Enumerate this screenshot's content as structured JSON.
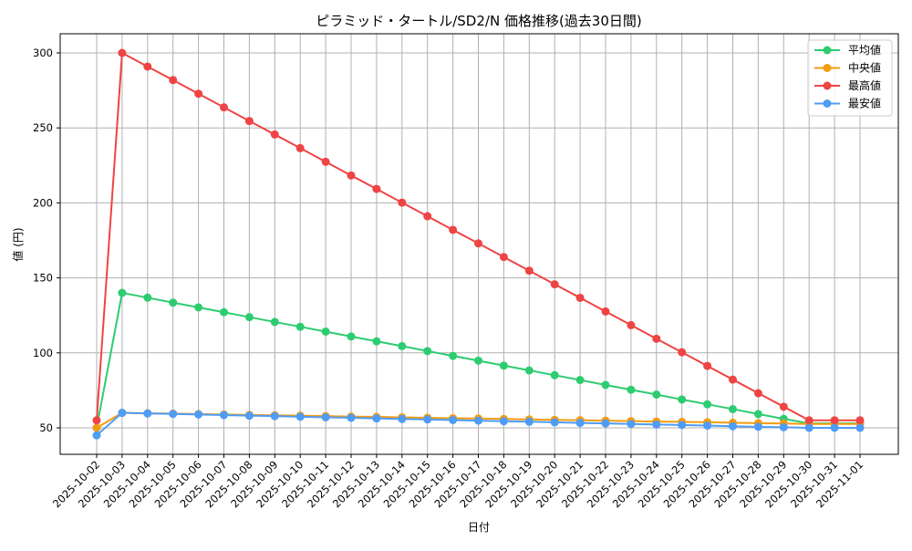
{
  "chart_data": {
    "type": "line",
    "title": "ピラミッド・タートル/SD2/N 価格推移(過去30日間)",
    "xlabel": "日付",
    "ylabel": "値 (円)",
    "ylim": [
      32,
      313
    ],
    "yticks": [
      50,
      100,
      150,
      200,
      250,
      300
    ],
    "grid": true,
    "legend_position": "upper right",
    "x": [
      "2025-10-02",
      "2025-10-03",
      "2025-10-04",
      "2025-10-05",
      "2025-10-06",
      "2025-10-07",
      "2025-10-08",
      "2025-10-09",
      "2025-10-10",
      "2025-10-11",
      "2025-10-12",
      "2025-10-13",
      "2025-10-14",
      "2025-10-15",
      "2025-10-16",
      "2025-10-17",
      "2025-10-18",
      "2025-10-19",
      "2025-10-20",
      "2025-10-21",
      "2025-10-22",
      "2025-10-23",
      "2025-10-24",
      "2025-10-25",
      "2025-10-26",
      "2025-10-27",
      "2025-10-28",
      "2025-10-29",
      "2025-10-30",
      "2025-10-31",
      "2025-11-01"
    ],
    "series": [
      {
        "name": "平均値",
        "color": "#2ecc71",
        "values": [
          50,
          140,
          136.8,
          133.5,
          130.3,
          127.1,
          123.8,
          120.6,
          117.4,
          114.2,
          110.9,
          107.7,
          104.5,
          101.2,
          98,
          94.8,
          91.5,
          88.3,
          85.1,
          81.9,
          78.6,
          75.4,
          72.2,
          68.9,
          65.7,
          62.5,
          59.2,
          56,
          53,
          53,
          53
        ]
      },
      {
        "name": "中央値",
        "color": "#f39c12",
        "values": [
          50,
          60,
          59.7,
          59.5,
          59.2,
          58.9,
          58.6,
          58.4,
          58.1,
          57.8,
          57.5,
          57.3,
          57,
          56.7,
          56.4,
          56.2,
          55.9,
          55.6,
          55.3,
          55.1,
          54.8,
          54.5,
          54.2,
          54,
          53.7,
          53.4,
          53.1,
          52.9,
          52.6,
          52.6,
          52.6
        ]
      },
      {
        "name": "最高値",
        "color": "#ef4444",
        "values": [
          55,
          300,
          290.9,
          281.9,
          272.8,
          263.7,
          254.6,
          245.6,
          236.5,
          227.4,
          218.3,
          209.3,
          200.2,
          191.1,
          182,
          173,
          163.9,
          154.8,
          145.7,
          136.7,
          127.6,
          118.5,
          109.4,
          100.4,
          91.3,
          82.2,
          73.1,
          64.1,
          55,
          55,
          55
        ]
      },
      {
        "name": "最安値",
        "color": "#4f9cf5",
        "values": [
          45,
          60,
          59.6,
          59.3,
          58.9,
          58.5,
          58.1,
          57.8,
          57.4,
          57,
          56.7,
          56.3,
          55.9,
          55.6,
          55.2,
          54.8,
          54.4,
          54.1,
          53.7,
          53.3,
          53,
          52.6,
          52.2,
          51.9,
          51.5,
          51.1,
          50.7,
          50.4,
          50,
          50,
          50
        ]
      }
    ]
  }
}
